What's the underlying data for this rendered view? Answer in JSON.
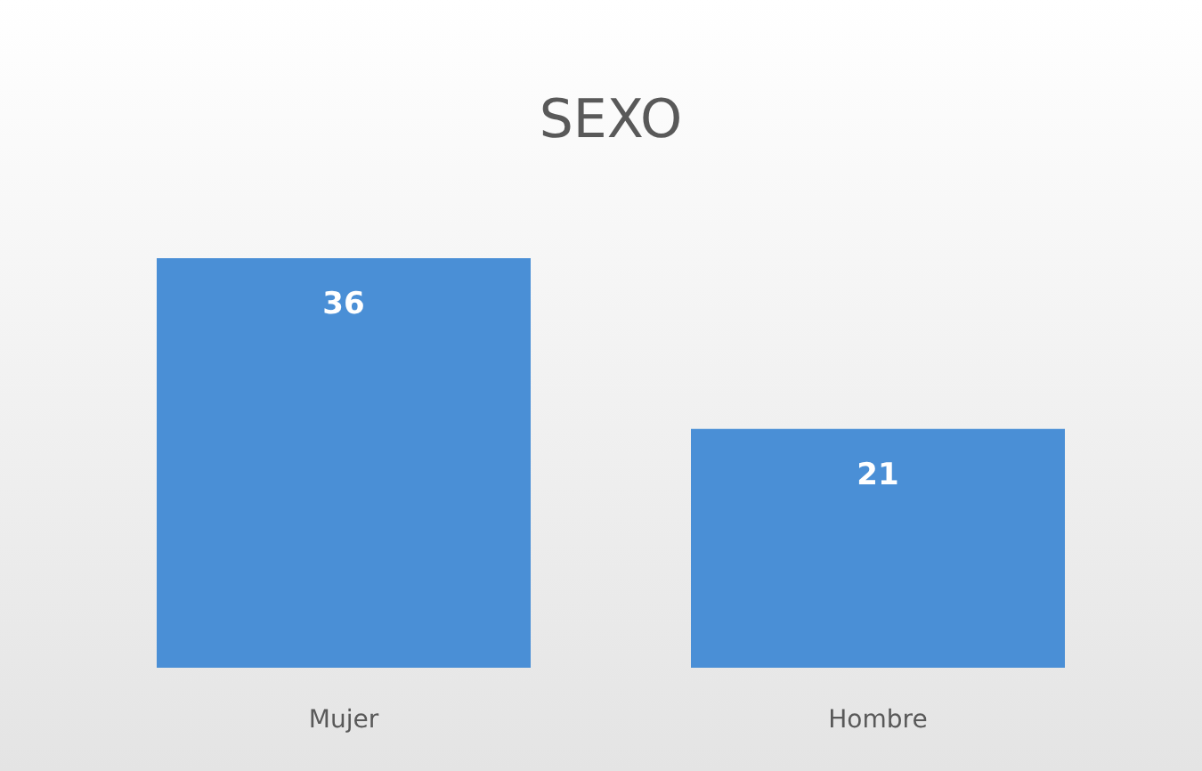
{
  "chart_data": {
    "type": "bar",
    "title": "SEXO",
    "categories": [
      "Mujer",
      "Hombre"
    ],
    "values": [
      36,
      21
    ],
    "color": "#4a8fd6",
    "data_labels": true
  }
}
